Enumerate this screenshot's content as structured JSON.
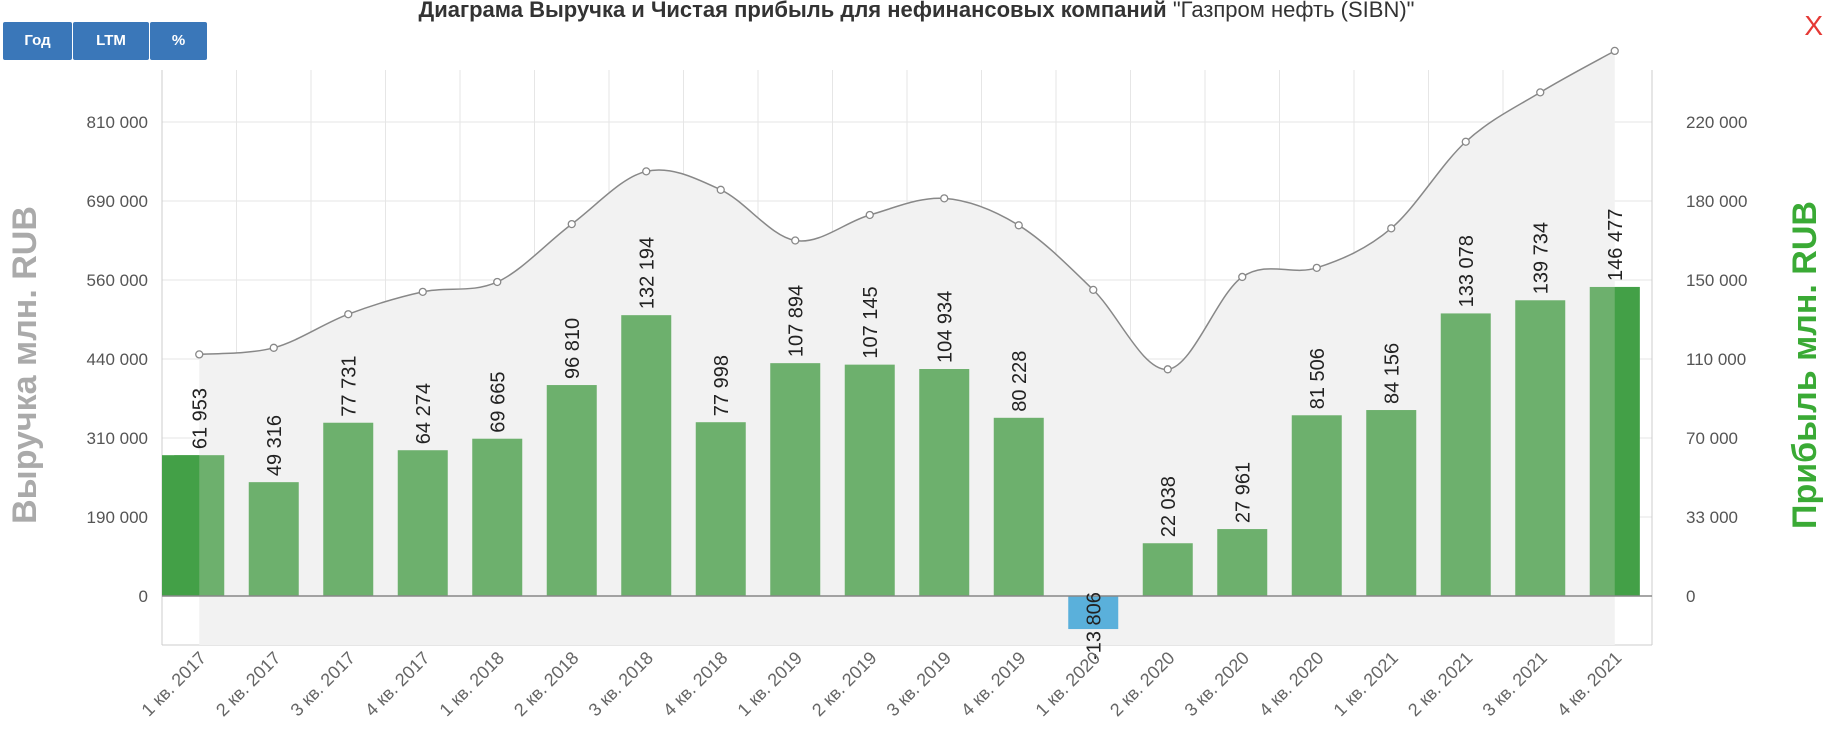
{
  "toolbar": {
    "buttons": [
      "Год",
      "LTM",
      "%"
    ]
  },
  "title": {
    "bold": "Диаграма Выручка и Чистая прибыль для нефинансовых компаний",
    "normal": "\"Газпром нефть (SIBN)\""
  },
  "close_label": "X",
  "colors": {
    "bar": "#6db06d",
    "bar_highlight": "#43a047",
    "bar_negative": "#5ab0db",
    "line": "#888888",
    "area": "#f2f2f2",
    "grid": "#e6e6e6",
    "left_axis_title": "#aaaaaa",
    "right_axis_title": "#3aaa35",
    "close": "#e53935"
  },
  "chart_data": {
    "type": "bar+line",
    "categories": [
      "1 кв. 2017",
      "2 кв. 2017",
      "3 кв. 2017",
      "4 кв. 2017",
      "1 кв. 2018",
      "2 кв. 2018",
      "3 кв. 2018",
      "4 кв. 2018",
      "1 кв. 2019",
      "2 кв. 2019",
      "3 кв. 2019",
      "4 кв. 2019",
      "1 кв. 2020",
      "2 кв. 2020",
      "3 кв. 2020",
      "4 кв. 2020",
      "1 кв. 2021",
      "2 кв. 2021",
      "3 кв. 2021",
      "4 кв. 2021"
    ],
    "profit": {
      "values": [
        61953,
        49316,
        77731,
        64274,
        69665,
        96810,
        132194,
        77998,
        107894,
        107145,
        104934,
        80228,
        -13806,
        22038,
        27961,
        81506,
        84156,
        133078,
        139734,
        146477
      ],
      "labels": [
        "61 953",
        "49 316",
        "77 731",
        "64 274",
        "69 665",
        "96 810",
        "132 194",
        "77 998",
        "107 894",
        "107 145",
        "104 934",
        "80 228",
        "-13 806",
        "22 038",
        "27 961",
        "81 506",
        "84 156",
        "133 078",
        "139 734",
        "146 477"
      ],
      "highlight_index": [
        0,
        19
      ]
    },
    "revenue": {
      "values": [
        447000,
        457000,
        508000,
        542000,
        557000,
        652000,
        735000,
        707000,
        625000,
        667000,
        694000,
        650000,
        545000,
        423000,
        565000,
        580000,
        645000,
        780000,
        855000,
        918000
      ]
    },
    "left_axis": {
      "title": "Выручка млн. RUB",
      "ticks": [
        0,
        190000,
        310000,
        440000,
        560000,
        690000,
        810000
      ],
      "tick_labels": [
        "0",
        "190 000",
        "310 000",
        "440 000",
        "560 000",
        "690 000",
        "810 000"
      ]
    },
    "right_axis": {
      "title": "Прибыль млн. RUB",
      "ticks": [
        0,
        33000,
        70000,
        110000,
        150000,
        180000,
        220000
      ],
      "tick_labels": [
        "0",
        "33 000",
        "70 000",
        "110 000",
        "150 000",
        "180 000",
        "220 000"
      ]
    },
    "grid": true
  }
}
